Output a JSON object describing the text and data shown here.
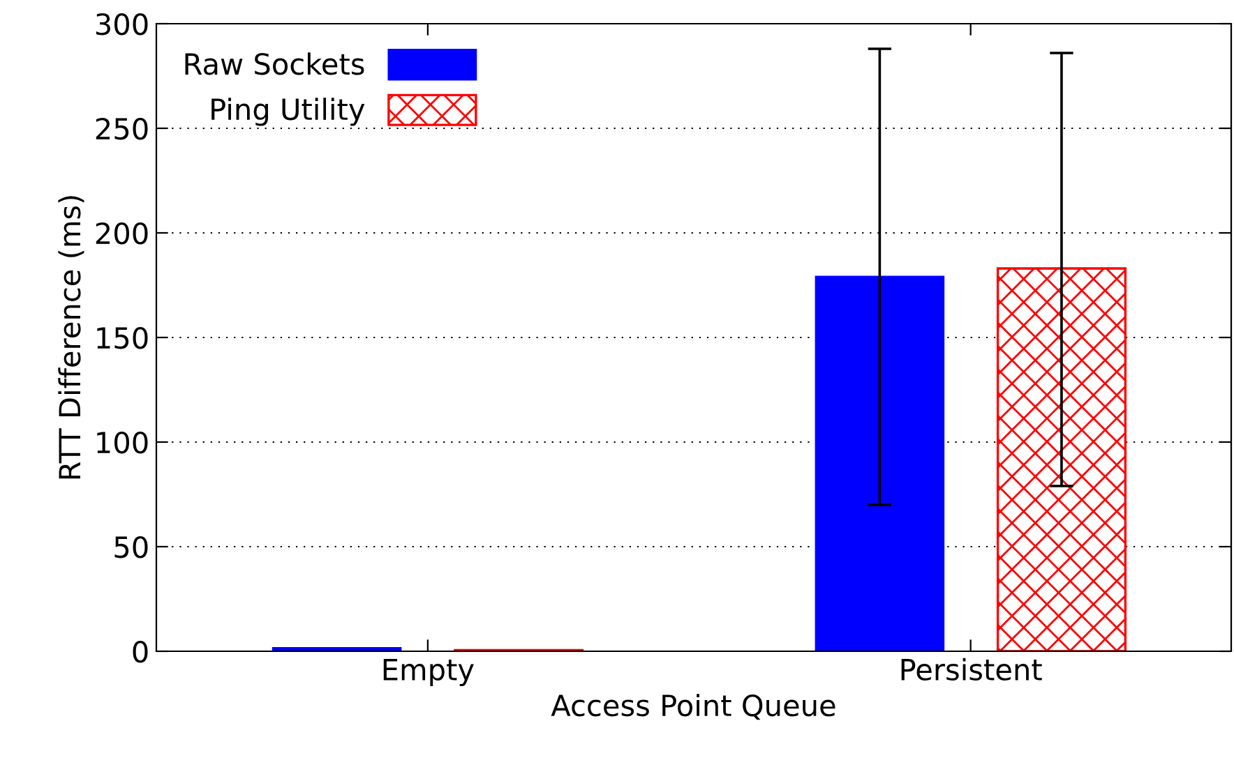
{
  "chart_data": {
    "type": "bar",
    "xlabel": "Access Point Queue",
    "ylabel": "RTT Difference (ms)",
    "categories": [
      "Empty",
      "Persistent"
    ],
    "series": [
      {
        "name": "Raw Sockets",
        "color": "#0000ff",
        "values": [
          1.5,
          179
        ],
        "errors": [
          null,
          [
            70,
            288
          ]
        ]
      },
      {
        "name": "Ping Utility",
        "color": "#ff0000",
        "values": [
          0.5,
          183
        ],
        "errors": [
          null,
          [
            79,
            286
          ]
        ]
      }
    ],
    "ylim": [
      0,
      300
    ],
    "yticks": [
      0,
      50,
      100,
      150,
      200,
      250,
      300
    ],
    "grid": "y",
    "legend": "top left"
  }
}
